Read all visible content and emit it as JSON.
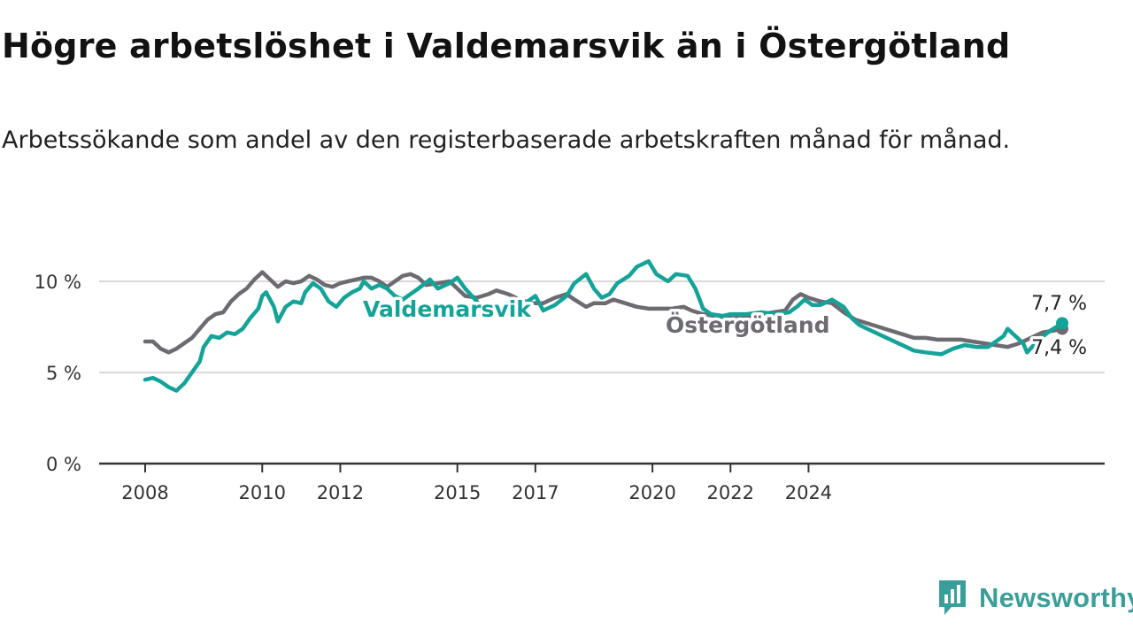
{
  "header": {
    "title": "Högre arbetslöshet i Valdemarsvik än i Östergötland",
    "subtitle": "Arbetssökande som andel av den registerbaserade arbetskraften månad för månad."
  },
  "brand": {
    "name": "Newsworthy",
    "icon": "newsworthy-logo-icon",
    "color": "#3a9e9a"
  },
  "chart_data": {
    "type": "line",
    "x_ticks": [
      "2008",
      "2010",
      "2012",
      "2015",
      "2017",
      "2020",
      "2022",
      "2024"
    ],
    "y_ticks": [
      "0 %",
      "5 %",
      "10 %"
    ],
    "ylim": [
      0,
      12
    ],
    "grid": true,
    "series": [
      {
        "name": "Valdemarsvik",
        "color": "#14a398",
        "end_label": "7,7 %",
        "points": [
          [
            2008.0,
            4.6
          ],
          [
            2008.2,
            4.7
          ],
          [
            2008.4,
            4.5
          ],
          [
            2008.6,
            4.2
          ],
          [
            2008.8,
            4.0
          ],
          [
            2009.0,
            4.4
          ],
          [
            2009.2,
            5.0
          ],
          [
            2009.4,
            5.6
          ],
          [
            2009.5,
            6.4
          ],
          [
            2009.7,
            7.0
          ],
          [
            2009.9,
            6.9
          ],
          [
            2010.1,
            7.2
          ],
          [
            2010.3,
            7.1
          ],
          [
            2010.5,
            7.4
          ],
          [
            2010.7,
            8.0
          ],
          [
            2010.9,
            8.5
          ],
          [
            2011.0,
            9.2
          ],
          [
            2011.1,
            9.4
          ],
          [
            2011.3,
            8.6
          ],
          [
            2011.4,
            7.8
          ],
          [
            2011.6,
            8.6
          ],
          [
            2011.8,
            8.9
          ],
          [
            2012.0,
            8.8
          ],
          [
            2012.1,
            9.4
          ],
          [
            2012.3,
            9.9
          ],
          [
            2012.5,
            9.6
          ],
          [
            2012.7,
            8.9
          ],
          [
            2012.9,
            8.6
          ],
          [
            2013.1,
            9.1
          ],
          [
            2013.3,
            9.4
          ],
          [
            2013.5,
            9.6
          ],
          [
            2013.6,
            10.0
          ],
          [
            2013.8,
            9.6
          ],
          [
            2014.0,
            9.8
          ],
          [
            2014.2,
            9.6
          ],
          [
            2014.4,
            9.2
          ],
          [
            2014.6,
            9.0
          ],
          [
            2014.8,
            9.3
          ],
          [
            2015.0,
            9.6
          ],
          [
            2015.3,
            10.1
          ],
          [
            2015.5,
            9.6
          ],
          [
            2015.8,
            9.9
          ],
          [
            2016.0,
            10.2
          ],
          [
            2016.2,
            9.6
          ],
          [
            2016.5,
            8.9
          ],
          [
            2016.7,
            8.3
          ],
          [
            2016.9,
            8.2
          ],
          [
            2017.2,
            8.4
          ],
          [
            2017.5,
            8.6
          ],
          [
            2017.8,
            8.9
          ],
          [
            2018.0,
            9.2
          ],
          [
            2018.2,
            8.4
          ],
          [
            2018.5,
            8.7
          ],
          [
            2018.8,
            9.2
          ],
          [
            2019.0,
            9.9
          ],
          [
            2019.3,
            10.4
          ],
          [
            2019.5,
            9.6
          ],
          [
            2019.7,
            9.1
          ],
          [
            2019.9,
            9.3
          ],
          [
            2020.1,
            9.9
          ],
          [
            2020.4,
            10.3
          ],
          [
            2020.6,
            10.8
          ],
          [
            2020.9,
            11.1
          ],
          [
            2021.1,
            10.4
          ],
          [
            2021.4,
            10.0
          ],
          [
            2021.6,
            10.4
          ],
          [
            2021.9,
            10.3
          ],
          [
            2022.1,
            9.6
          ],
          [
            2022.3,
            8.5
          ],
          [
            2022.5,
            8.2
          ],
          [
            2022.8,
            8.1
          ],
          [
            2023.0,
            8.2
          ],
          [
            2023.4,
            8.2
          ],
          [
            2023.8,
            8.3
          ],
          [
            2024.2,
            8.2
          ],
          [
            2024.5,
            8.3
          ],
          [
            2024.7,
            8.6
          ],
          [
            2024.9,
            9.0
          ],
          [
            2025.1,
            8.7
          ],
          [
            2025.3,
            8.7
          ],
          [
            2025.6,
            9.0
          ],
          [
            2025.9,
            8.6
          ],
          [
            2026.1,
            8.0
          ],
          [
            2026.3,
            7.6
          ],
          [
            2026.6,
            7.3
          ],
          [
            2026.9,
            7.0
          ],
          [
            2027.1,
            6.8
          ],
          [
            2027.4,
            6.5
          ],
          [
            2027.7,
            6.2
          ],
          [
            2028.0,
            6.1
          ],
          [
            2028.4,
            6.0
          ],
          [
            2028.7,
            6.3
          ],
          [
            2029.0,
            6.5
          ],
          [
            2029.3,
            6.4
          ],
          [
            2029.6,
            6.4
          ],
          [
            2029.8,
            6.7
          ],
          [
            2030.0,
            7.0
          ],
          [
            2030.1,
            7.4
          ],
          [
            2030.3,
            7.0
          ],
          [
            2030.5,
            6.6
          ],
          [
            2030.6,
            6.1
          ],
          [
            2030.9,
            6.8
          ],
          [
            2031.2,
            7.3
          ],
          [
            2031.5,
            7.7
          ]
        ]
      },
      {
        "name": "Östergötland",
        "color": "#6e6a72",
        "end_label": "7,4 %",
        "points": [
          [
            2008.0,
            6.7
          ],
          [
            2008.2,
            6.7
          ],
          [
            2008.4,
            6.3
          ],
          [
            2008.6,
            6.1
          ],
          [
            2008.8,
            6.3
          ],
          [
            2009.0,
            6.6
          ],
          [
            2009.2,
            6.9
          ],
          [
            2009.4,
            7.4
          ],
          [
            2009.6,
            7.9
          ],
          [
            2009.8,
            8.2
          ],
          [
            2010.0,
            8.3
          ],
          [
            2010.2,
            8.9
          ],
          [
            2010.4,
            9.3
          ],
          [
            2010.6,
            9.6
          ],
          [
            2010.8,
            10.1
          ],
          [
            2011.0,
            10.5
          ],
          [
            2011.2,
            10.1
          ],
          [
            2011.4,
            9.7
          ],
          [
            2011.6,
            10.0
          ],
          [
            2011.8,
            9.9
          ],
          [
            2012.0,
            10.0
          ],
          [
            2012.2,
            10.3
          ],
          [
            2012.4,
            10.1
          ],
          [
            2012.6,
            9.8
          ],
          [
            2012.8,
            9.7
          ],
          [
            2013.0,
            9.9
          ],
          [
            2013.2,
            10.0
          ],
          [
            2013.4,
            10.1
          ],
          [
            2013.6,
            10.2
          ],
          [
            2013.8,
            10.2
          ],
          [
            2014.0,
            10.0
          ],
          [
            2014.2,
            9.7
          ],
          [
            2014.4,
            10.0
          ],
          [
            2014.6,
            10.3
          ],
          [
            2014.8,
            10.4
          ],
          [
            2015.0,
            10.2
          ],
          [
            2015.2,
            9.8
          ],
          [
            2015.5,
            9.9
          ],
          [
            2015.8,
            10.0
          ],
          [
            2016.0,
            9.6
          ],
          [
            2016.2,
            9.2
          ],
          [
            2016.5,
            9.1
          ],
          [
            2016.8,
            9.3
          ],
          [
            2017.0,
            9.5
          ],
          [
            2017.3,
            9.3
          ],
          [
            2017.6,
            9.0
          ],
          [
            2017.9,
            8.8
          ],
          [
            2018.2,
            8.8
          ],
          [
            2018.5,
            9.1
          ],
          [
            2018.8,
            9.3
          ],
          [
            2019.0,
            9.0
          ],
          [
            2019.3,
            8.6
          ],
          [
            2019.5,
            8.8
          ],
          [
            2019.8,
            8.8
          ],
          [
            2020.0,
            9.0
          ],
          [
            2020.3,
            8.8
          ],
          [
            2020.6,
            8.6
          ],
          [
            2020.9,
            8.5
          ],
          [
            2021.2,
            8.5
          ],
          [
            2021.5,
            8.5
          ],
          [
            2021.8,
            8.6
          ],
          [
            2022.0,
            8.4
          ],
          [
            2022.3,
            8.2
          ],
          [
            2022.6,
            8.1
          ],
          [
            2022.9,
            8.0
          ],
          [
            2023.2,
            8.0
          ],
          [
            2023.5,
            8.1
          ],
          [
            2023.8,
            8.2
          ],
          [
            2024.1,
            8.3
          ],
          [
            2024.4,
            8.4
          ],
          [
            2024.6,
            9.0
          ],
          [
            2024.8,
            9.3
          ],
          [
            2025.0,
            9.1
          ],
          [
            2025.3,
            8.9
          ],
          [
            2025.6,
            8.8
          ],
          [
            2025.9,
            8.3
          ],
          [
            2026.2,
            7.9
          ],
          [
            2026.5,
            7.7
          ],
          [
            2026.8,
            7.5
          ],
          [
            2027.1,
            7.3
          ],
          [
            2027.4,
            7.1
          ],
          [
            2027.7,
            6.9
          ],
          [
            2028.0,
            6.9
          ],
          [
            2028.3,
            6.8
          ],
          [
            2028.6,
            6.8
          ],
          [
            2028.9,
            6.8
          ],
          [
            2029.2,
            6.7
          ],
          [
            2029.5,
            6.6
          ],
          [
            2029.8,
            6.5
          ],
          [
            2030.1,
            6.4
          ],
          [
            2030.4,
            6.6
          ],
          [
            2030.7,
            6.9
          ],
          [
            2031.0,
            7.2
          ],
          [
            2031.3,
            7.3
          ],
          [
            2031.5,
            7.4
          ]
        ]
      }
    ]
  }
}
